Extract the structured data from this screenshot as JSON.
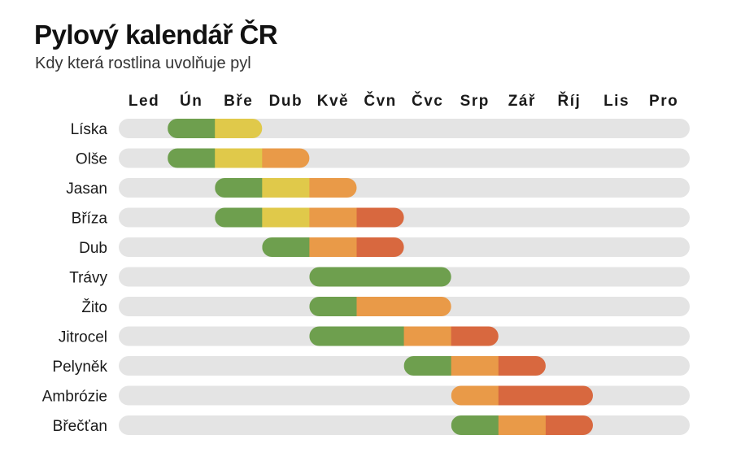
{
  "header": {
    "title": "Pylový kalendář ČR",
    "subtitle": "Kdy která rostlina uvolňuje pyl"
  },
  "colors": {
    "track": "#e4e4e4",
    "low": "#6e9f4e",
    "moderate": "#e0c94a",
    "high": "#e99a48",
    "very_high": "#d8683f"
  },
  "chart_data": {
    "type": "table",
    "months": [
      "Led",
      "Ún",
      "Bře",
      "Dub",
      "Kvě",
      "Čvn",
      "Čvc",
      "Srp",
      "Zář",
      "Říj",
      "Lis",
      "Pro"
    ],
    "grid": false,
    "legend": "none",
    "plants": [
      {
        "name": "Líska",
        "segments": [
          {
            "start": 2,
            "end": 2,
            "level": "low"
          },
          {
            "start": 3,
            "end": 3,
            "level": "moderate"
          }
        ]
      },
      {
        "name": "Olše",
        "segments": [
          {
            "start": 2,
            "end": 2,
            "level": "low"
          },
          {
            "start": 3,
            "end": 3,
            "level": "moderate"
          },
          {
            "start": 4,
            "end": 4,
            "level": "high"
          }
        ]
      },
      {
        "name": "Jasan",
        "segments": [
          {
            "start": 3,
            "end": 3,
            "level": "low"
          },
          {
            "start": 4,
            "end": 4,
            "level": "moderate"
          },
          {
            "start": 5,
            "end": 5,
            "level": "high"
          }
        ]
      },
      {
        "name": "Bříza",
        "segments": [
          {
            "start": 3,
            "end": 3,
            "level": "low"
          },
          {
            "start": 4,
            "end": 4,
            "level": "moderate"
          },
          {
            "start": 5,
            "end": 5,
            "level": "high"
          },
          {
            "start": 6,
            "end": 6,
            "level": "very_high"
          }
        ]
      },
      {
        "name": "Dub",
        "segments": [
          {
            "start": 4,
            "end": 4,
            "level": "low"
          },
          {
            "start": 5,
            "end": 5,
            "level": "high"
          },
          {
            "start": 6,
            "end": 6,
            "level": "very_high"
          }
        ]
      },
      {
        "name": "Trávy",
        "segments": [
          {
            "start": 5,
            "end": 7,
            "level": "low"
          }
        ]
      },
      {
        "name": "Žito",
        "segments": [
          {
            "start": 5,
            "end": 5,
            "level": "low"
          },
          {
            "start": 6,
            "end": 7,
            "level": "high"
          }
        ]
      },
      {
        "name": "Jitrocel",
        "segments": [
          {
            "start": 5,
            "end": 6,
            "level": "low"
          },
          {
            "start": 7,
            "end": 7,
            "level": "high"
          },
          {
            "start": 8,
            "end": 8,
            "level": "very_high"
          }
        ]
      },
      {
        "name": "Pelyněk",
        "segments": [
          {
            "start": 7,
            "end": 7,
            "level": "low"
          },
          {
            "start": 8,
            "end": 8,
            "level": "high"
          },
          {
            "start": 9,
            "end": 9,
            "level": "very_high"
          }
        ]
      },
      {
        "name": "Ambrózie",
        "segments": [
          {
            "start": 8,
            "end": 8,
            "level": "high"
          },
          {
            "start": 9,
            "end": 10,
            "level": "very_high"
          }
        ]
      },
      {
        "name": "Břečťan",
        "segments": [
          {
            "start": 8,
            "end": 8,
            "level": "low"
          },
          {
            "start": 9,
            "end": 9,
            "level": "high"
          },
          {
            "start": 10,
            "end": 10,
            "level": "very_high"
          }
        ]
      }
    ]
  }
}
